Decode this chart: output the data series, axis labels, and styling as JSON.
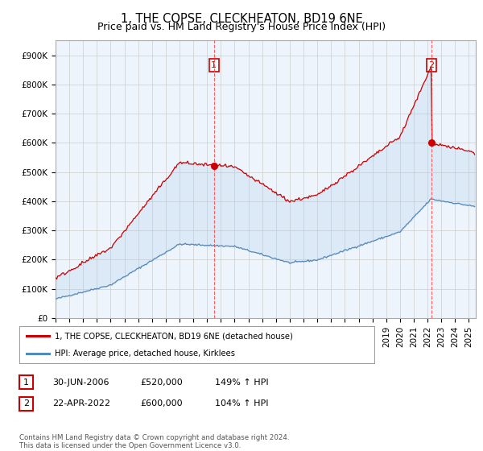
{
  "title": "1, THE COPSE, CLECKHEATON, BD19 6NE",
  "subtitle": "Price paid vs. HM Land Registry's House Price Index (HPI)",
  "ylim": [
    0,
    950000
  ],
  "yticks": [
    0,
    100000,
    200000,
    300000,
    400000,
    500000,
    600000,
    700000,
    800000,
    900000
  ],
  "ytick_labels": [
    "£0",
    "£100K",
    "£200K",
    "£300K",
    "£400K",
    "£500K",
    "£600K",
    "£700K",
    "£800K",
    "£900K"
  ],
  "line1_color": "#cc0000",
  "line2_color": "#5588bb",
  "fill_color": "#ddeeff",
  "vline_color": "#ff4444",
  "chart_bg": "#eef4fb",
  "point1_year": 2006.5,
  "point1_value": 520000,
  "point2_year": 2022.28,
  "point2_value": 600000,
  "legend_label1": "1, THE COPSE, CLECKHEATON, BD19 6NE (detached house)",
  "legend_label2": "HPI: Average price, detached house, Kirklees",
  "table_row1": [
    "1",
    "30-JUN-2006",
    "£520,000",
    "149% ↑ HPI"
  ],
  "table_row2": [
    "2",
    "22-APR-2022",
    "£600,000",
    "104% ↑ HPI"
  ],
  "footer": "Contains HM Land Registry data © Crown copyright and database right 2024.\nThis data is licensed under the Open Government Licence v3.0.",
  "background_color": "#ffffff",
  "grid_color": "#cccccc",
  "title_fontsize": 10.5,
  "subtitle_fontsize": 9,
  "tick_fontsize": 7.5
}
